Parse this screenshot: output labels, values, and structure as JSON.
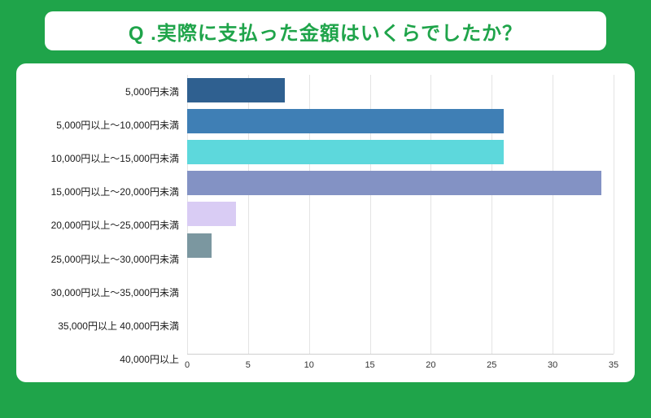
{
  "title": "Q .実際に支払った金額はいくらでしたか？",
  "colors": {
    "page_background": "#1FA44A",
    "title_text": "#1FA44A",
    "card_background": "#FFFFFF",
    "gridline": "#E4E4E4",
    "axis_line": "#CFCFCF",
    "category_label_text": "#1A1A1A",
    "tick_label_text": "#333333"
  },
  "chart_data": {
    "type": "bar",
    "orientation": "horizontal",
    "title": "Q .実際に支払った金額はいくらでしたか？",
    "categories": [
      "5,000円未満",
      "5,000円以上～10,000円未満",
      "10,000円以上～15,000円未満",
      "15,000円以上～20,000円未満",
      "20,000円以上～25,000円未満",
      "25,000円以上～30,000円未満",
      "30,000円以上～35,000円未満",
      "35,000円以上 40,000円未満",
      "40,000円以上"
    ],
    "values": [
      8,
      26,
      26,
      34,
      4,
      2,
      0,
      0,
      0
    ],
    "bar_colors": [
      "#2F6090",
      "#3F7FB5",
      "#5DD8DC",
      "#8392C4",
      "#D9CCF4",
      "#7B97A0",
      "#CCCCCC",
      "#CCCCCC",
      "#CCCCCC"
    ],
    "xlabel": "",
    "ylabel": "",
    "xlim": [
      0,
      35
    ],
    "ticks": [
      0,
      5,
      10,
      15,
      20,
      25,
      30,
      35
    ],
    "grid": true,
    "legend": false
  }
}
